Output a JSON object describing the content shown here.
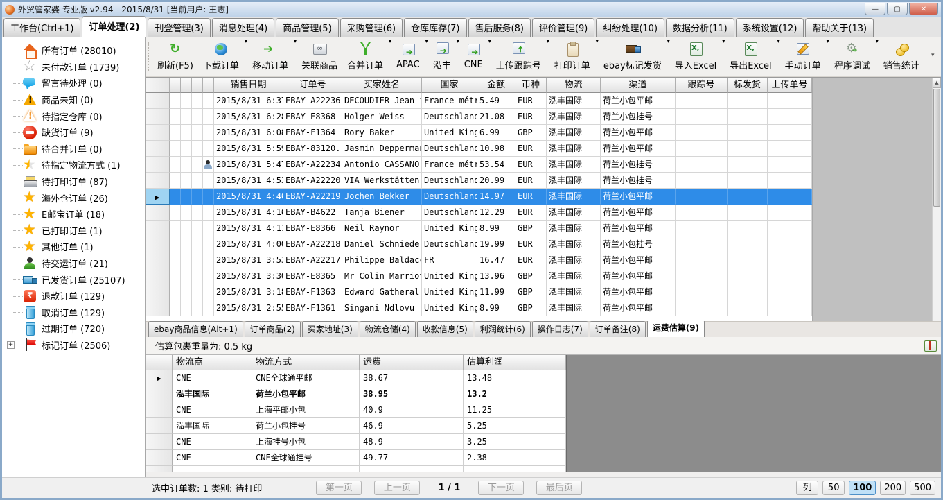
{
  "window": {
    "title": "外贸管家婆 专业版 v2.94 - 2015/8/31 [当前用户: 王志]",
    "controls": [
      "minimize-icon",
      "maximize-icon",
      "close-icon"
    ]
  },
  "menu_tabs": [
    {
      "label": "工作台(Ctrl+1)",
      "active": false
    },
    {
      "label": "订单处理(2)",
      "active": true
    },
    {
      "label": "刊登管理(3)",
      "active": false
    },
    {
      "label": "消息处理(4)",
      "active": false
    },
    {
      "label": "商品管理(5)",
      "active": false
    },
    {
      "label": "采购管理(6)",
      "active": false
    },
    {
      "label": "仓库库存(7)",
      "active": false
    },
    {
      "label": "售后服务(8)",
      "active": false
    },
    {
      "label": "评价管理(9)",
      "active": false
    },
    {
      "label": "纠纷处理(10)",
      "active": false
    },
    {
      "label": "数据分析(11)",
      "active": false
    },
    {
      "label": "系统设置(12)",
      "active": false
    },
    {
      "label": "帮助关于(13)",
      "active": false
    }
  ],
  "toolbar": {
    "buttons": [
      {
        "label": "刷新(F5)",
        "icon": "refresh-icon",
        "dropdown": false
      },
      {
        "label": "下载订单",
        "icon": "globe-icon",
        "dropdown": true
      },
      {
        "label": "移动订单",
        "icon": "arrow-right-icon",
        "dropdown": true
      },
      {
        "label": "关联商品",
        "icon": "link-icon",
        "dropdown": false
      },
      {
        "label": "合并订单",
        "icon": "merge-icon",
        "dropdown": true
      },
      {
        "label": "APAC",
        "icon": "doc-arrow-icon",
        "dropdown": true
      },
      {
        "label": "泓丰",
        "icon": "doc-arrow-icon",
        "dropdown": true
      },
      {
        "label": "CNE",
        "icon": "doc-arrow-icon",
        "dropdown": true
      },
      {
        "label": "上传跟踪号",
        "icon": "upload-icon",
        "dropdown": true
      },
      {
        "label": "打印订单",
        "icon": "clipboard-icon",
        "dropdown": true
      },
      {
        "label": "ebay标记发货",
        "icon": "truck-icon",
        "dropdown": true
      },
      {
        "label": "导入Excel",
        "icon": "excel-icon",
        "dropdown": true
      },
      {
        "label": "导出Excel",
        "icon": "excel-icon",
        "dropdown": true
      },
      {
        "label": "手动订单",
        "icon": "pencil-icon",
        "dropdown": true
      },
      {
        "label": "程序调试",
        "icon": "gear-icon",
        "dropdown": true
      },
      {
        "label": "销售统计",
        "icon": "coins-icon",
        "dropdown": false
      }
    ]
  },
  "sidebar": {
    "items": [
      {
        "text": "所有订单 (28010)",
        "icon": "home-icon",
        "expandable": false
      },
      {
        "text": "未付款订单 (1739)",
        "icon": "star-outline-icon",
        "expandable": false
      },
      {
        "text": "留言待处理 (0)",
        "icon": "chat-bubble-icon",
        "expandable": false
      },
      {
        "text": "商品未知 (0)",
        "icon": "warning-icon",
        "expandable": false
      },
      {
        "text": "待指定仓库 (0)",
        "icon": "warning-outline-icon",
        "expandable": false
      },
      {
        "text": "缺货订单 (9)",
        "icon": "no-entry-icon",
        "expandable": false
      },
      {
        "text": "待合并订单 (0)",
        "icon": "folder-icon",
        "expandable": false
      },
      {
        "text": "待指定物流方式 (1)",
        "icon": "star-half-icon",
        "expandable": false
      },
      {
        "text": "待打印订单 (87)",
        "icon": "printer-icon",
        "expandable": false
      },
      {
        "text": "海外仓订单 (26)",
        "icon": "star-icon",
        "expandable": false
      },
      {
        "text": "E邮宝订单 (18)",
        "icon": "star-icon",
        "expandable": false
      },
      {
        "text": "已打印订单 (1)",
        "icon": "star-icon",
        "expandable": false
      },
      {
        "text": "其他订单 (1)",
        "icon": "star-icon",
        "expandable": false
      },
      {
        "text": "待交运订单 (21)",
        "icon": "person-icon",
        "expandable": false
      },
      {
        "text": "已发货订单 (25107)",
        "icon": "truck-icon",
        "expandable": false
      },
      {
        "text": "退款订单 (129)",
        "icon": "refund-icon",
        "expandable": false
      },
      {
        "text": "取消订单 (129)",
        "icon": "trash-icon",
        "expandable": false
      },
      {
        "text": "过期订单 (720)",
        "icon": "trash-icon",
        "expandable": false
      },
      {
        "text": "标记订单 (2506)",
        "icon": "flag-icon",
        "expandable": true
      }
    ]
  },
  "orders_table": {
    "headers": [
      "销售日期",
      "订单号",
      "买家姓名",
      "国家",
      "金额",
      "币种",
      "物流",
      "渠道",
      "跟踪号",
      "标发货",
      "上传单号"
    ],
    "rows": [
      {
        "cells": [
          "2015/8/31 6:37",
          "EBAY-A22236",
          "DECOUDIER Jean-f...",
          "France métr...",
          "5.49",
          "EUR",
          "泓丰国际",
          "荷兰小包平邮",
          "",
          "",
          ""
        ],
        "selected": false,
        "person": false
      },
      {
        "cells": [
          "2015/8/31 6:28",
          "EBAY-E8368",
          "Holger Weiss",
          "Deutschland",
          "21.08",
          "EUR",
          "泓丰国际",
          "荷兰小包挂号",
          "",
          "",
          ""
        ],
        "selected": false,
        "person": false
      },
      {
        "cells": [
          "2015/8/31 6:08",
          "EBAY-F1364",
          "Rory Baker",
          "United Kingdom",
          "6.99",
          "GBP",
          "泓丰国际",
          "荷兰小包平邮",
          "",
          "",
          ""
        ],
        "selected": false,
        "person": false
      },
      {
        "cells": [
          "2015/8/31 5:59",
          "EBAY-83120...",
          "Jasmin Deppermann",
          "Deutschland",
          "10.98",
          "EUR",
          "泓丰国际",
          "荷兰小包平邮",
          "",
          "",
          ""
        ],
        "selected": false,
        "person": false
      },
      {
        "cells": [
          "2015/8/31 5:47",
          "EBAY-A22234",
          "Antonio CASSANO",
          "France métr...",
          "53.54",
          "EUR",
          "泓丰国际",
          "荷兰小包挂号",
          "",
          "",
          ""
        ],
        "selected": false,
        "person": true
      },
      {
        "cells": [
          "2015/8/31 4:53",
          "EBAY-A22220",
          "VIA Werkstätten ...",
          "Deutschland",
          "20.99",
          "EUR",
          "泓丰国际",
          "荷兰小包挂号",
          "",
          "",
          ""
        ],
        "selected": false,
        "person": false
      },
      {
        "cells": [
          "2015/8/31 4:46",
          "EBAY-A22219",
          "Jochen Bekker",
          "Deutschland",
          "14.97",
          "EUR",
          "泓丰国际",
          "荷兰小包平邮",
          "",
          "",
          ""
        ],
        "selected": true,
        "person": false
      },
      {
        "cells": [
          "2015/8/31 4:16",
          "EBAY-B4622",
          "Tanja Biener",
          "Deutschland",
          "12.29",
          "EUR",
          "泓丰国际",
          "荷兰小包平邮",
          "",
          "",
          ""
        ],
        "selected": false,
        "person": false
      },
      {
        "cells": [
          "2015/8/31 4:11",
          "EBAY-E8366",
          "Neil Raynor",
          "United Kingdom",
          "8.99",
          "GBP",
          "泓丰国际",
          "荷兰小包平邮",
          "",
          "",
          ""
        ],
        "selected": false,
        "person": false
      },
      {
        "cells": [
          "2015/8/31 4:00",
          "EBAY-A22218",
          "Daniel Schnieders",
          "Deutschland",
          "19.99",
          "EUR",
          "泓丰国际",
          "荷兰小包挂号",
          "",
          "",
          ""
        ],
        "selected": false,
        "person": false
      },
      {
        "cells": [
          "2015/8/31 3:53",
          "EBAY-A22217",
          "Philippe Baldacc...",
          "FR",
          "16.47",
          "EUR",
          "泓丰国际",
          "荷兰小包平邮",
          "",
          "",
          ""
        ],
        "selected": false,
        "person": false
      },
      {
        "cells": [
          "2015/8/31 3:30",
          "EBAY-E8365",
          "Mr Colin Marriott",
          "United Kingdom",
          "13.96",
          "GBP",
          "泓丰国际",
          "荷兰小包平邮",
          "",
          "",
          ""
        ],
        "selected": false,
        "person": false
      },
      {
        "cells": [
          "2015/8/31 3:18",
          "EBAY-F1363",
          "Edward Gatheral",
          "United Kingdom",
          "11.99",
          "GBP",
          "泓丰国际",
          "荷兰小包平邮",
          "",
          "",
          ""
        ],
        "selected": false,
        "person": false
      },
      {
        "cells": [
          "2015/8/31 2:55",
          "EBAY-F1361",
          "Singani Ndlovu",
          "United Kingdom",
          "8.99",
          "GBP",
          "泓丰国际",
          "荷兰小包平邮",
          "",
          "",
          ""
        ],
        "selected": false,
        "person": false
      }
    ]
  },
  "detail": {
    "tabs": [
      {
        "label": "ebay商品信息(Alt+1)",
        "active": false
      },
      {
        "label": "订单商品(2)",
        "active": false
      },
      {
        "label": "买家地址(3)",
        "active": false
      },
      {
        "label": "物流仓储(4)",
        "active": false
      },
      {
        "label": "收款信息(5)",
        "active": false
      },
      {
        "label": "利润统计(6)",
        "active": false
      },
      {
        "label": "操作日志(7)",
        "active": false
      },
      {
        "label": "订单备注(8)",
        "active": false
      },
      {
        "label": "运费估算(9)",
        "active": true
      }
    ],
    "weight_note": "估算包裹重量为: 0.5 kg"
  },
  "shipping_table": {
    "headers": [
      "物流商",
      "物流方式",
      "运费",
      "估算利润"
    ],
    "rows": [
      {
        "cells": [
          "CNE",
          "CNE全球通平邮",
          "38.67",
          "13.48"
        ],
        "bold": false,
        "marker": true
      },
      {
        "cells": [
          "泓丰国际",
          "荷兰小包平邮",
          "38.95",
          "13.2"
        ],
        "bold": true,
        "marker": false
      },
      {
        "cells": [
          "CNE",
          "上海平邮小包",
          "40.9",
          "11.25"
        ],
        "bold": false,
        "marker": false
      },
      {
        "cells": [
          "泓丰国际",
          "荷兰小包挂号",
          "46.9",
          "5.25"
        ],
        "bold": false,
        "marker": false
      },
      {
        "cells": [
          "CNE",
          "上海挂号小包",
          "48.9",
          "3.25"
        ],
        "bold": false,
        "marker": false
      },
      {
        "cells": [
          "CNE",
          "CNE全球通挂号",
          "49.77",
          "2.38"
        ],
        "bold": false,
        "marker": false
      },
      {
        "cells": [
          "",
          "",
          "",
          ""
        ],
        "bold": false,
        "marker": false
      }
    ]
  },
  "status_bar": {
    "selection_text": "选中订单数: 1 类别: 待打印",
    "pager": {
      "first": "第一页",
      "prev": "上一页",
      "indicator": "1 / 1",
      "next": "下一页",
      "last": "最后页"
    },
    "page_sizes": [
      "列",
      "50",
      "100",
      "200",
      "500"
    ],
    "active_page_size": "100"
  },
  "colors": {
    "selected_row": "#2e8ce8",
    "active_page_bg": "#bfe0f7",
    "filler_gray": "#c0c0c0"
  }
}
